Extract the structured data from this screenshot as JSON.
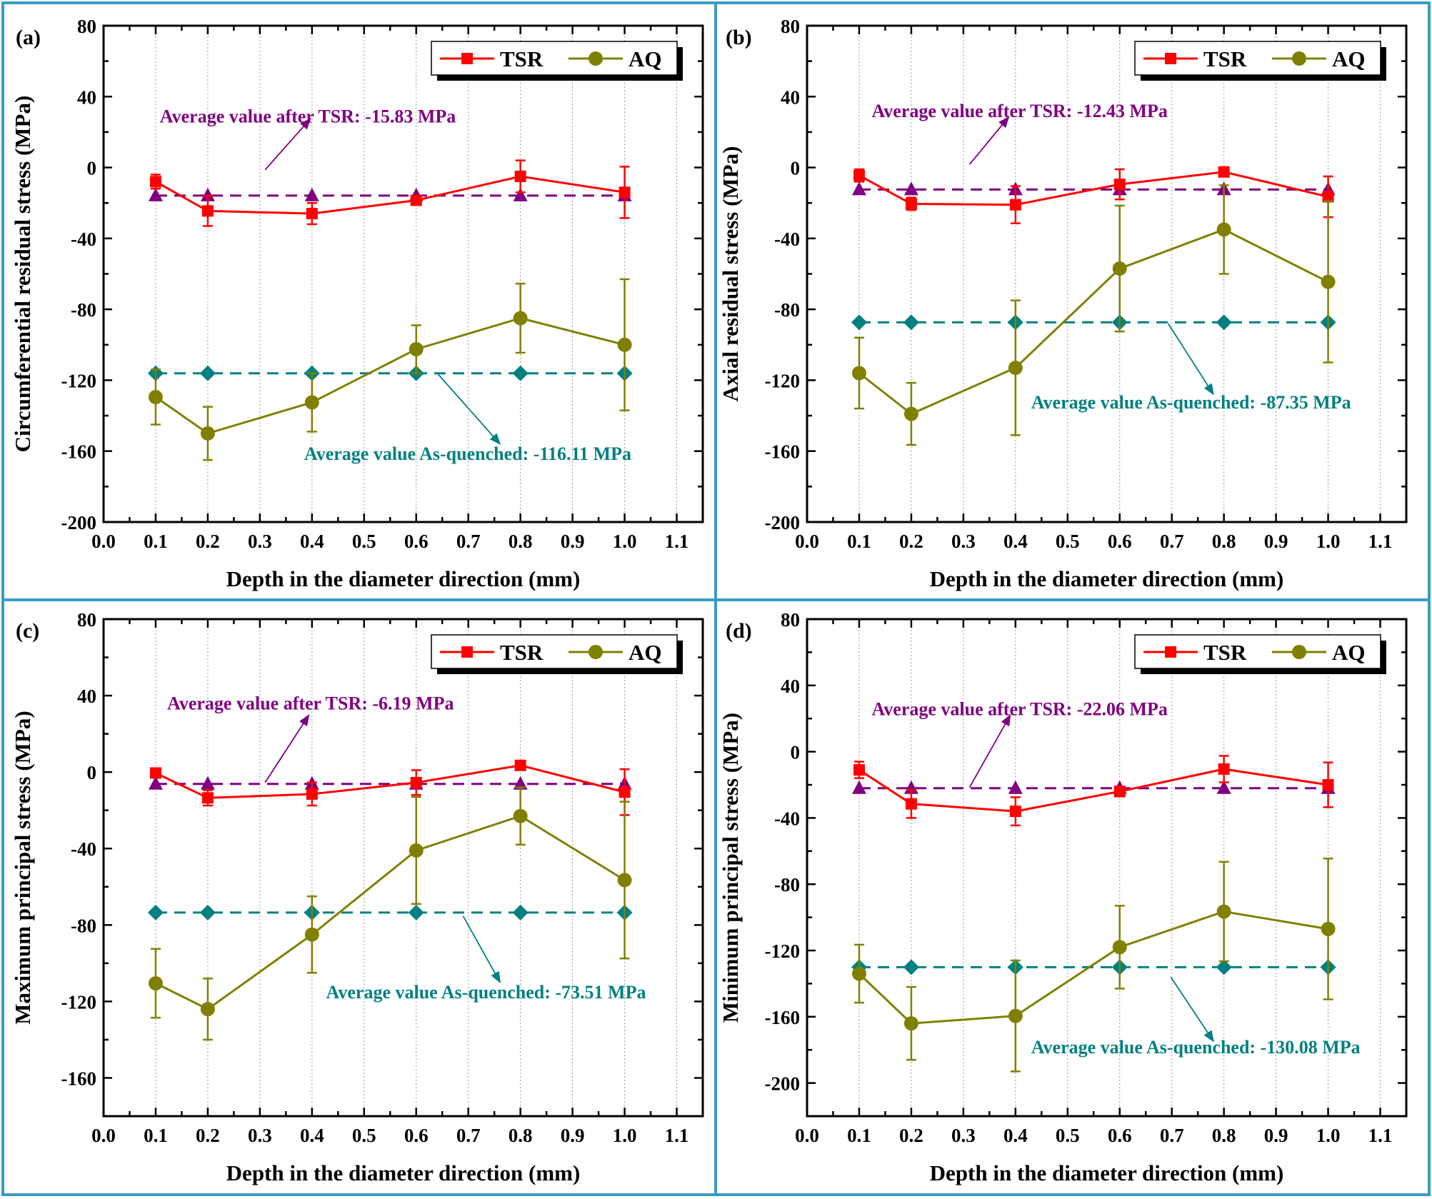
{
  "colors": {
    "frame": "#3a9cc4",
    "tsr": "#ff0000",
    "aq": "#808000",
    "tsr_avg": "#800080",
    "aq_avg": "#008080",
    "grid": "#9a9a9a"
  },
  "chart_data": [
    {
      "type": "line",
      "panel_label": "(a)",
      "xlabel": "Depth in the diameter direction (mm)",
      "ylabel": "Circumferential residual stress (MPa)",
      "xlim": [
        0,
        1.15
      ],
      "ylim": [
        -200,
        80
      ],
      "grid": "vertical dotted",
      "xticks": [
        "0.0",
        "0.1",
        "0.2",
        "0.3",
        "0.4",
        "0.5",
        "0.6",
        "0.7",
        "0.8",
        "0.9",
        "1.0",
        "1.1"
      ],
      "yticks": [
        "80",
        "40",
        "0",
        "-40",
        "-80",
        "-120",
        "-160",
        "-200"
      ],
      "legend": "top-right",
      "x": [
        0.1,
        0.2,
        0.4,
        0.6,
        0.8,
        1.0
      ],
      "series": [
        {
          "name": "TSR",
          "values": [
            -8,
            -24.5,
            -26,
            -18.5,
            -5,
            -14
          ],
          "errors": [
            4,
            8.5,
            6,
            2,
            9,
            14.5
          ]
        },
        {
          "name": "AQ",
          "values": [
            -129.5,
            -150,
            -132.5,
            -102.5,
            -85,
            -100
          ],
          "errors": [
            15.5,
            15,
            16.5,
            13.5,
            19.5,
            37
          ]
        }
      ],
      "averages": [
        {
          "value": -15.83,
          "label": "Average value after TSR: -15.83 MPa"
        },
        {
          "value": -116.11,
          "label": "Average value As-quenched: -116.11 MPa"
        }
      ]
    },
    {
      "type": "line",
      "panel_label": "(b)",
      "xlabel": "Depth in the diameter direction (mm)",
      "ylabel": "Axial residual stress (MPa)",
      "xlim": [
        0,
        1.15
      ],
      "ylim": [
        -200,
        80
      ],
      "grid": "vertical dotted",
      "xticks": [
        "0.0",
        "0.1",
        "0.2",
        "0.3",
        "0.4",
        "0.5",
        "0.6",
        "0.7",
        "0.8",
        "0.9",
        "1.0",
        "1.1"
      ],
      "yticks": [
        "80",
        "40",
        "0",
        "-40",
        "-80",
        "-120",
        "-160",
        "-200"
      ],
      "legend": "top-right",
      "x": [
        0.1,
        0.2,
        0.4,
        0.6,
        0.8,
        1.0
      ],
      "series": [
        {
          "name": "TSR",
          "values": [
            -4.5,
            -20.5,
            -21,
            -9.5,
            -2.5,
            -16.5
          ],
          "errors": [
            3.5,
            3.5,
            10.5,
            8.5,
            2,
            11.5
          ]
        },
        {
          "name": "AQ",
          "values": [
            -116,
            -139,
            -113,
            -57,
            -35,
            -64.5
          ],
          "errors": [
            20,
            17.5,
            38,
            35.5,
            25,
            45.5
          ]
        }
      ],
      "averages": [
        {
          "value": -12.43,
          "label": "Average value after TSR: -12.43 MPa"
        },
        {
          "value": -87.35,
          "label": "Average value As-quenched: -87.35 MPa"
        }
      ]
    },
    {
      "type": "line",
      "panel_label": "(c)",
      "xlabel": "Depth in the diameter direction (mm)",
      "ylabel": "Maximum principal stress (MPa)",
      "xlim": [
        0,
        1.15
      ],
      "ylim": [
        -180,
        80
      ],
      "grid": "vertical dotted",
      "xticks": [
        "0.0",
        "0.1",
        "0.2",
        "0.3",
        "0.4",
        "0.5",
        "0.6",
        "0.7",
        "0.8",
        "0.9",
        "1.0",
        "1.1"
      ],
      "yticks": [
        "80",
        "40",
        "0",
        "-40",
        "-80",
        "-120",
        "-160"
      ],
      "legend": "top-right",
      "x": [
        0.1,
        0.2,
        0.4,
        0.6,
        0.8,
        1.0
      ],
      "series": [
        {
          "name": "TSR",
          "values": [
            -0.5,
            -13.5,
            -11.5,
            -5.5,
            3.5,
            -10.5
          ],
          "errors": [
            2.5,
            4,
            6,
            6.5,
            1,
            12
          ]
        },
        {
          "name": "AQ",
          "values": [
            -110.5,
            -124,
            -85,
            -41,
            -23,
            -56.5
          ],
          "errors": [
            18,
            16,
            20,
            28,
            15,
            41
          ]
        }
      ],
      "averages": [
        {
          "value": -6.19,
          "label": "Average value after TSR: -6.19 MPa"
        },
        {
          "value": -73.51,
          "label": "Average value As-quenched: -73.51 MPa"
        }
      ]
    },
    {
      "type": "line",
      "panel_label": "(d)",
      "xlabel": "Depth in the diameter direction (mm)",
      "ylabel": "Minimum principal stress (MPa)",
      "xlim": [
        0,
        1.15
      ],
      "ylim": [
        -220,
        80
      ],
      "grid": "vertical dotted",
      "xticks": [
        "0.0",
        "0.1",
        "0.2",
        "0.3",
        "0.4",
        "0.5",
        "0.6",
        "0.7",
        "0.8",
        "0.9",
        "1.0",
        "1.1"
      ],
      "yticks": [
        "80",
        "40",
        "0",
        "-40",
        "-80",
        "-120",
        "-160",
        "-200"
      ],
      "legend": "top-right",
      "x": [
        0.1,
        0.2,
        0.4,
        0.6,
        0.8,
        1.0
      ],
      "series": [
        {
          "name": "TSR",
          "values": [
            -11,
            -31.5,
            -36,
            -24,
            -10.5,
            -20
          ],
          "errors": [
            5,
            8.5,
            8.5,
            3,
            8,
            13.5
          ]
        },
        {
          "name": "AQ",
          "values": [
            -134,
            -164,
            -159.5,
            -118,
            -96.5,
            -107
          ],
          "errors": [
            17.5,
            22,
            33.5,
            25,
            30,
            42.5
          ]
        }
      ],
      "averages": [
        {
          "value": -22.06,
          "label": "Average value after TSR: -22.06 MPa"
        },
        {
          "value": -130.08,
          "label": "Average value As-quenched: -130.08 MPa"
        }
      ]
    }
  ]
}
